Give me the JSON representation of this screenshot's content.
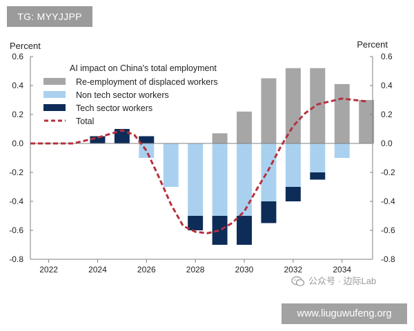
{
  "watermarks": {
    "top": "TG: MYYJJPP",
    "bottom": "www.liuguwufeng.org",
    "lab": "公众号 · 边际Lab",
    "lab_icon": "wechat-icon"
  },
  "chart_data": {
    "type": "bar",
    "title": "AI impact on China's total employment",
    "ylabel_left": "Percent",
    "ylabel_right": "Percent",
    "ylim": [
      -0.8,
      0.6
    ],
    "yticks": [
      0.6,
      0.4,
      0.2,
      0.0,
      -0.2,
      -0.4,
      -0.6,
      -0.8
    ],
    "ytick_labels": [
      "0.6",
      "0.4",
      "0.2",
      "0.0",
      "-0.2",
      "-0.4",
      "-0.6",
      "-0.8"
    ],
    "xlim": [
      2021.25,
      2035.25
    ],
    "xticks": [
      2022,
      2024,
      2026,
      2028,
      2030,
      2032,
      2034
    ],
    "xtick_labels": [
      "2022",
      "2024",
      "2026",
      "2028",
      "2030",
      "2032",
      "2034"
    ],
    "grid": false,
    "legend_position": "top-left",
    "categories": [
      2024,
      2025,
      2026,
      2027,
      2028,
      2029,
      2030,
      2031,
      2032,
      2033,
      2034,
      2035
    ],
    "series": [
      {
        "name": "Re-employment of displaced workers",
        "kind": "bar",
        "color": "#a6a6a6",
        "values": [
          0,
          0,
          0,
          0,
          0,
          0.07,
          0.22,
          0.45,
          0.52,
          0.52,
          0.41,
          0.3
        ]
      },
      {
        "name": "Non tech sector workers",
        "kind": "bar",
        "color": "#a9d1ef",
        "values": [
          0,
          0,
          -0.1,
          -0.3,
          -0.5,
          -0.5,
          -0.5,
          -0.4,
          -0.3,
          -0.2,
          -0.1,
          0
        ]
      },
      {
        "name": "Tech sector workers",
        "kind": "bar",
        "color": "#0e2c58",
        "values": [
          0.05,
          0.1,
          0.05,
          0,
          -0.1,
          -0.2,
          -0.2,
          -0.15,
          -0.1,
          -0.05,
          0,
          0
        ]
      },
      {
        "name": "Total",
        "kind": "line",
        "color": "#b5303d",
        "x": [
          2021.25,
          2022,
          2023,
          2024,
          2025,
          2025.5,
          2026,
          2026.5,
          2027,
          2027.5,
          2028,
          2028.5,
          2029,
          2029.5,
          2030,
          2030.5,
          2031,
          2031.5,
          2032,
          2032.5,
          2033,
          2033.5,
          2034,
          2034.5,
          2035
        ],
        "values": [
          0.0,
          0.0,
          0.0,
          0.04,
          0.09,
          0.06,
          -0.05,
          -0.23,
          -0.42,
          -0.57,
          -0.61,
          -0.62,
          -0.6,
          -0.55,
          -0.47,
          -0.32,
          -0.18,
          -0.02,
          0.12,
          0.21,
          0.27,
          0.29,
          0.31,
          0.3,
          0.29
        ]
      }
    ]
  }
}
